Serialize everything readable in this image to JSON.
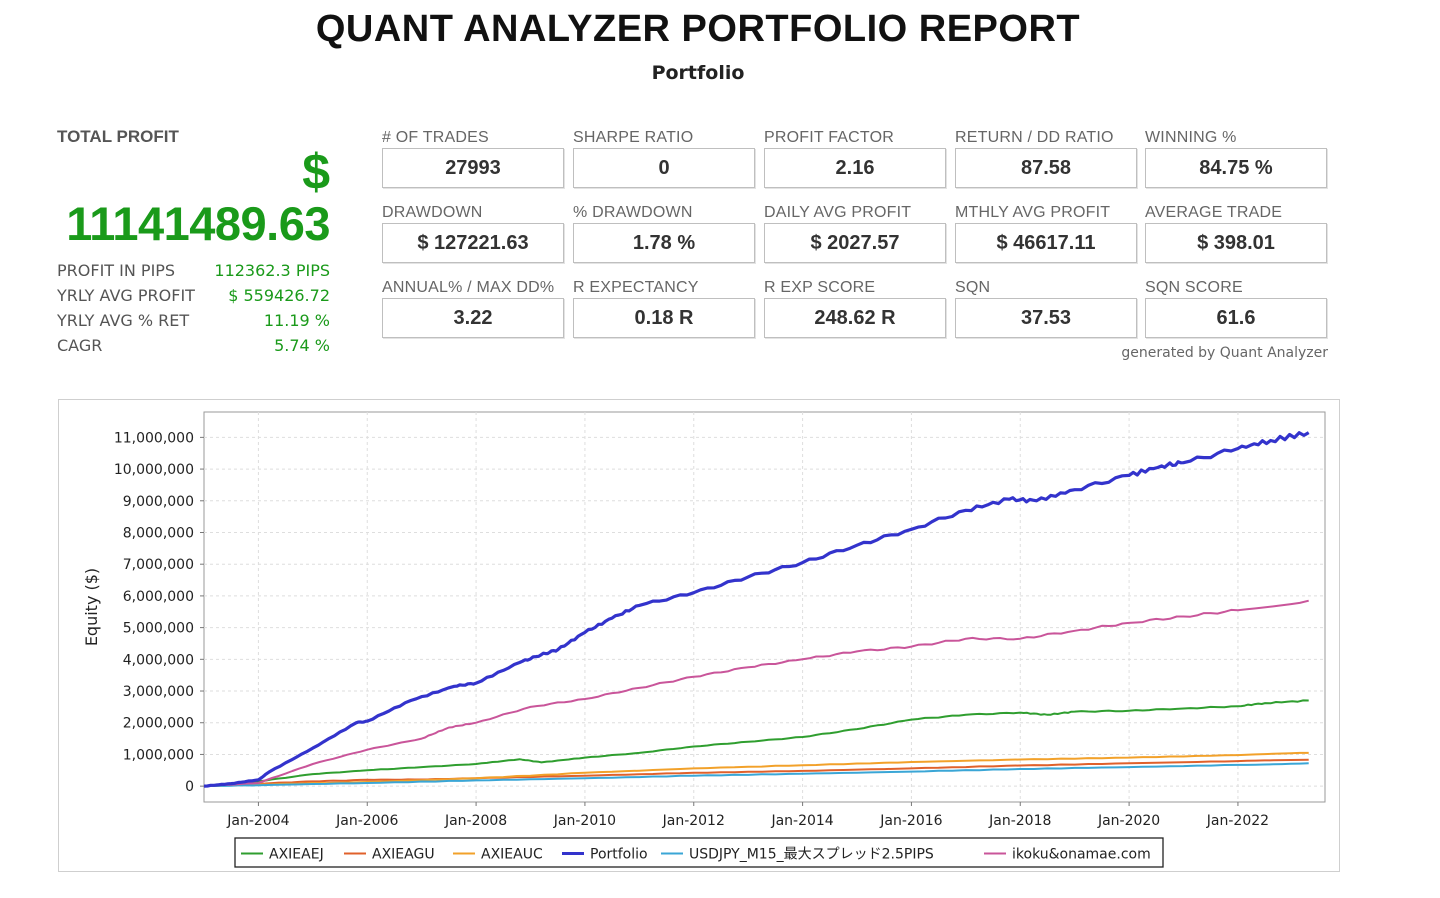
{
  "header": {
    "title": "QUANT ANALYZER PORTFOLIO REPORT",
    "subtitle": "Portfolio"
  },
  "total_profit": {
    "label": "TOTAL PROFIT",
    "currency": "$",
    "value": "11141489.63",
    "stats": [
      {
        "label": "PROFIT IN PIPS",
        "value": "112362.3 PIPS"
      },
      {
        "label": "YRLY AVG PROFIT",
        "value": "$ 559426.72"
      },
      {
        "label": "YRLY AVG % RET",
        "value": "11.19 %"
      },
      {
        "label": "CAGR",
        "value": "5.74 %"
      }
    ]
  },
  "metrics": [
    {
      "label": "# OF TRADES",
      "value": "27993"
    },
    {
      "label": "SHARPE RATIO",
      "value": "0"
    },
    {
      "label": "PROFIT FACTOR",
      "value": "2.16"
    },
    {
      "label": "RETURN / DD RATIO",
      "value": "87.58"
    },
    {
      "label": "WINNING %",
      "value": "84.75 %"
    },
    {
      "label": "DRAWDOWN",
      "value": "$ 127221.63"
    },
    {
      "label": "% DRAWDOWN",
      "value": "1.78 %"
    },
    {
      "label": "DAILY AVG PROFIT",
      "value": "$ 2027.57"
    },
    {
      "label": "MTHLY AVG PROFIT",
      "value": "$ 46617.11"
    },
    {
      "label": "AVERAGE TRADE",
      "value": "$ 398.01"
    },
    {
      "label": "ANNUAL% / MAX DD%",
      "value": "3.22"
    },
    {
      "label": "R EXPECTANCY",
      "value": "0.18 R"
    },
    {
      "label": "R EXP SCORE",
      "value": "248.62 R"
    },
    {
      "label": "SQN",
      "value": "37.53"
    },
    {
      "label": "SQN SCORE",
      "value": "61.6"
    }
  ],
  "generated_by": "generated by Quant Analyzer",
  "colors": {
    "profit_green": "#1a9a1a",
    "AXIEAEJ": "#2f9e2f",
    "AXIEAGU": "#e0612b",
    "AXIEAUC": "#f2a12a",
    "Portfolio": "#3333cc",
    "USDJPY": "#3aa6d6",
    "ikoku": "#c9559a"
  },
  "chart_data": {
    "type": "line",
    "ylabel": "Equity ($)",
    "xlabel": "",
    "xlim": [
      2003.0,
      2023.6
    ],
    "ylim": [
      -500000,
      11800000
    ],
    "y_ticks": [
      0,
      1000000,
      2000000,
      3000000,
      4000000,
      5000000,
      6000000,
      7000000,
      8000000,
      9000000,
      10000000,
      11000000
    ],
    "y_tick_labels": [
      "0",
      "1,000,000",
      "2,000,000",
      "3,000,000",
      "4,000,000",
      "5,000,000",
      "6,000,000",
      "7,000,000",
      "8,000,000",
      "9,000,000",
      "10,000,000",
      "11,000,000"
    ],
    "x_ticks": [
      2004.0,
      2006.0,
      2008.0,
      2010.0,
      2012.0,
      2014.0,
      2016.0,
      2018.0,
      2020.0,
      2022.0
    ],
    "x_tick_labels": [
      "Jan-2004",
      "Jan-2006",
      "Jan-2008",
      "Jan-2010",
      "Jan-2012",
      "Jan-2014",
      "Jan-2016",
      "Jan-2018",
      "Jan-2020",
      "Jan-2022"
    ],
    "grid": true,
    "legend_position": "bottom",
    "series": [
      {
        "name": "AXIEAEJ",
        "color": "#2f9e2f",
        "points": [
          [
            2003.0,
            0
          ],
          [
            2003.7,
            80000
          ],
          [
            2004.0,
            150000
          ],
          [
            2005.0,
            380000
          ],
          [
            2006.0,
            500000
          ],
          [
            2007.0,
            600000
          ],
          [
            2008.0,
            700000
          ],
          [
            2008.8,
            850000
          ],
          [
            2009.2,
            750000
          ],
          [
            2010.0,
            900000
          ],
          [
            2011.0,
            1050000
          ],
          [
            2012.0,
            1250000
          ],
          [
            2013.0,
            1400000
          ],
          [
            2014.0,
            1550000
          ],
          [
            2015.0,
            1800000
          ],
          [
            2016.0,
            2100000
          ],
          [
            2017.0,
            2250000
          ],
          [
            2018.0,
            2320000
          ],
          [
            2018.5,
            2250000
          ],
          [
            2019.0,
            2350000
          ],
          [
            2020.0,
            2380000
          ],
          [
            2021.0,
            2450000
          ],
          [
            2022.0,
            2520000
          ],
          [
            2022.5,
            2620000
          ],
          [
            2023.3,
            2700000
          ]
        ]
      },
      {
        "name": "AXIEAGU",
        "color": "#e0612b",
        "points": [
          [
            2003.0,
            0
          ],
          [
            2004.0,
            80000
          ],
          [
            2005.0,
            150000
          ],
          [
            2006.0,
            200000
          ],
          [
            2007.0,
            210000
          ],
          [
            2008.0,
            250000
          ],
          [
            2010.0,
            330000
          ],
          [
            2012.0,
            420000
          ],
          [
            2014.0,
            480000
          ],
          [
            2016.0,
            560000
          ],
          [
            2018.0,
            650000
          ],
          [
            2020.0,
            720000
          ],
          [
            2022.0,
            790000
          ],
          [
            2023.3,
            830000
          ]
        ]
      },
      {
        "name": "AXIEAUC",
        "color": "#f2a12a",
        "points": [
          [
            2003.0,
            0
          ],
          [
            2004.0,
            50000
          ],
          [
            2006.0,
            130000
          ],
          [
            2008.0,
            250000
          ],
          [
            2010.0,
            420000
          ],
          [
            2012.0,
            560000
          ],
          [
            2014.0,
            660000
          ],
          [
            2016.0,
            760000
          ],
          [
            2018.0,
            840000
          ],
          [
            2020.0,
            900000
          ],
          [
            2022.0,
            980000
          ],
          [
            2023.3,
            1050000
          ]
        ]
      },
      {
        "name": "Portfolio",
        "color": "#3333cc",
        "points": [
          [
            2003.0,
            0
          ],
          [
            2003.5,
            80000
          ],
          [
            2004.0,
            200000
          ],
          [
            2004.2,
            450000
          ],
          [
            2005.0,
            1200000
          ],
          [
            2005.8,
            2000000
          ],
          [
            2006.0,
            2050000
          ],
          [
            2006.8,
            2700000
          ],
          [
            2007.6,
            3150000
          ],
          [
            2008.0,
            3250000
          ],
          [
            2008.8,
            3900000
          ],
          [
            2009.2,
            4150000
          ],
          [
            2009.5,
            4300000
          ],
          [
            2010.0,
            4850000
          ],
          [
            2010.5,
            5300000
          ],
          [
            2011.0,
            5700000
          ],
          [
            2012.0,
            6100000
          ],
          [
            2013.0,
            6600000
          ],
          [
            2014.0,
            7050000
          ],
          [
            2015.0,
            7600000
          ],
          [
            2016.0,
            8100000
          ],
          [
            2017.0,
            8700000
          ],
          [
            2017.8,
            9050000
          ],
          [
            2018.3,
            9000000
          ],
          [
            2019.0,
            9350000
          ],
          [
            2020.0,
            9800000
          ],
          [
            2020.6,
            10100000
          ],
          [
            2021.0,
            10200000
          ],
          [
            2022.0,
            10650000
          ],
          [
            2022.6,
            10900000
          ],
          [
            2023.3,
            11150000
          ]
        ]
      },
      {
        "name": "USDJPY_M15_最大スプレッド2.5PIPS",
        "color": "#3aa6d6",
        "points": [
          [
            2003.0,
            0
          ],
          [
            2004.0,
            30000
          ],
          [
            2006.0,
            100000
          ],
          [
            2008.0,
            180000
          ],
          [
            2010.0,
            250000
          ],
          [
            2012.0,
            330000
          ],
          [
            2014.0,
            390000
          ],
          [
            2016.0,
            460000
          ],
          [
            2018.0,
            540000
          ],
          [
            2020.0,
            600000
          ],
          [
            2022.0,
            670000
          ],
          [
            2023.3,
            720000
          ]
        ]
      },
      {
        "name": "ikoku&onamae.com",
        "color": "#c9559a",
        "points": [
          [
            2003.0,
            0
          ],
          [
            2004.0,
            100000
          ],
          [
            2005.0,
            700000
          ],
          [
            2006.0,
            1150000
          ],
          [
            2007.0,
            1500000
          ],
          [
            2007.5,
            1850000
          ],
          [
            2008.0,
            2000000
          ],
          [
            2009.0,
            2500000
          ],
          [
            2010.0,
            2750000
          ],
          [
            2011.0,
            3100000
          ],
          [
            2012.0,
            3450000
          ],
          [
            2013.0,
            3750000
          ],
          [
            2014.0,
            4000000
          ],
          [
            2015.0,
            4250000
          ],
          [
            2016.0,
            4400000
          ],
          [
            2017.0,
            4650000
          ],
          [
            2018.0,
            4650000
          ],
          [
            2019.0,
            4900000
          ],
          [
            2020.0,
            5150000
          ],
          [
            2021.0,
            5350000
          ],
          [
            2022.0,
            5550000
          ],
          [
            2023.3,
            5850000
          ]
        ]
      }
    ]
  }
}
